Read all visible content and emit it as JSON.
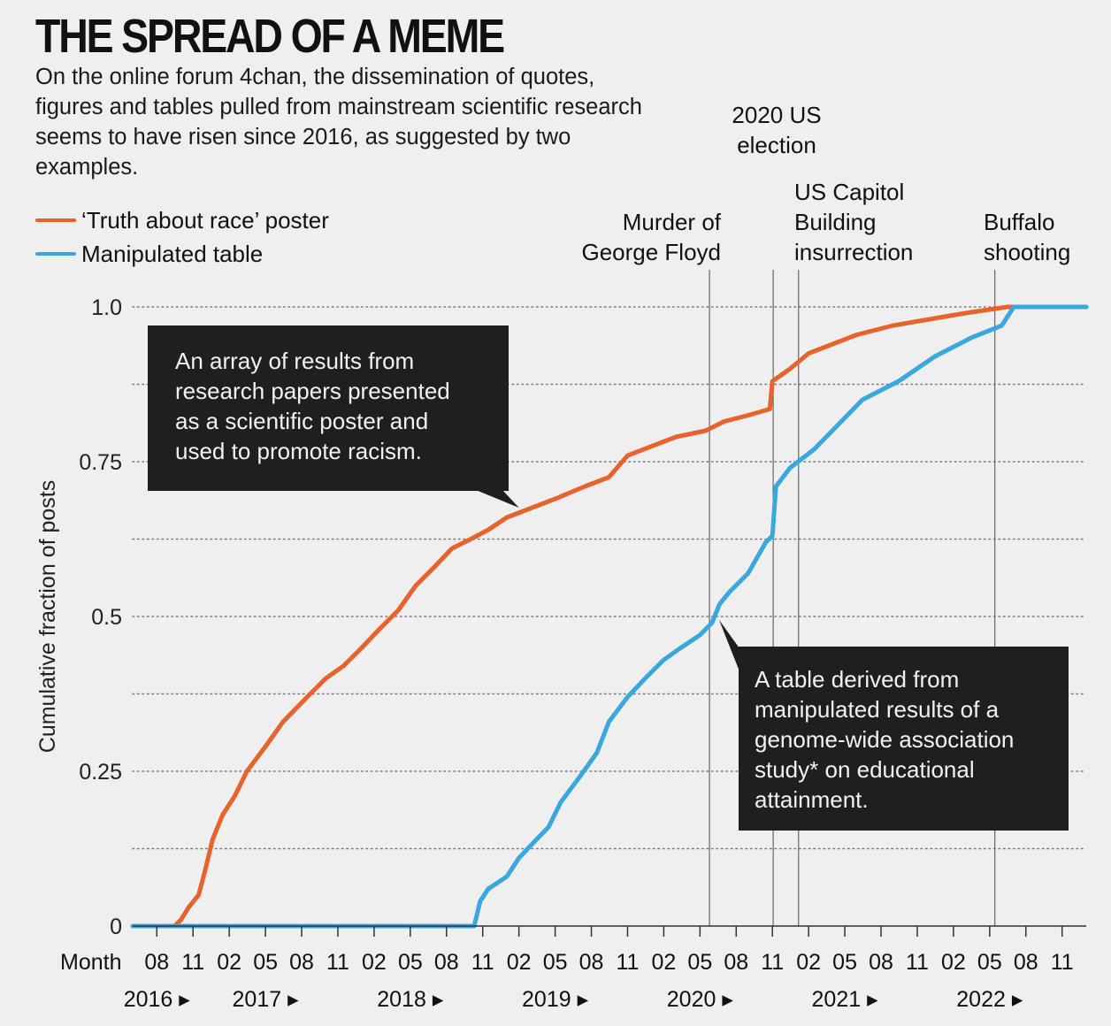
{
  "title": "THE SPREAD OF A MEME",
  "subtitle": "On the online forum 4chan, the dissemination of quotes, figures and tables pulled from mainstream scientific research seems to have risen since 2016, as suggested by two examples.",
  "colors": {
    "poster": "#e8622c",
    "table": "#3aa7dd",
    "background": "#efefef",
    "box": "#1f1f1f"
  },
  "chart_data": {
    "type": "line",
    "ylabel": "Cumulative fraction of posts",
    "xlabel": "Month",
    "ylim": [
      0,
      1
    ],
    "xlim": [
      "2016-06",
      "2023-01"
    ],
    "yticks": [
      {
        "value": 0,
        "label": "0"
      },
      {
        "value": 0.25,
        "label": "0.25"
      },
      {
        "value": 0.5,
        "label": "0.5"
      },
      {
        "value": 0.75,
        "label": "0.75"
      },
      {
        "value": 1.0,
        "label": "1.0"
      }
    ],
    "month_ticks": [
      {
        "date": "2016-08",
        "label": "08"
      },
      {
        "date": "2016-11",
        "label": "11"
      },
      {
        "date": "2017-02",
        "label": "02"
      },
      {
        "date": "2017-05",
        "label": "05"
      },
      {
        "date": "2017-08",
        "label": "08"
      },
      {
        "date": "2017-11",
        "label": "11"
      },
      {
        "date": "2018-02",
        "label": "02"
      },
      {
        "date": "2018-05",
        "label": "05"
      },
      {
        "date": "2018-08",
        "label": "08"
      },
      {
        "date": "2018-11",
        "label": "11"
      },
      {
        "date": "2019-02",
        "label": "02"
      },
      {
        "date": "2019-05",
        "label": "05"
      },
      {
        "date": "2019-08",
        "label": "08"
      },
      {
        "date": "2019-11",
        "label": "11"
      },
      {
        "date": "2020-02",
        "label": "02"
      },
      {
        "date": "2020-05",
        "label": "05"
      },
      {
        "date": "2020-08",
        "label": "08"
      },
      {
        "date": "2020-11",
        "label": "11"
      },
      {
        "date": "2021-02",
        "label": "02"
      },
      {
        "date": "2021-05",
        "label": "05"
      },
      {
        "date": "2021-08",
        "label": "08"
      },
      {
        "date": "2021-11",
        "label": "11"
      },
      {
        "date": "2022-02",
        "label": "02"
      },
      {
        "date": "2022-05",
        "label": "05"
      },
      {
        "date": "2022-08",
        "label": "08"
      },
      {
        "date": "2022-11",
        "label": "11"
      }
    ],
    "year_labels": [
      {
        "date": "2016-08",
        "label": "2016 ▸"
      },
      {
        "date": "2017-05",
        "label": "2017 ▸"
      },
      {
        "date": "2018-05",
        "label": "2018 ▸"
      },
      {
        "date": "2019-05",
        "label": "2019 ▸"
      },
      {
        "date": "2020-05",
        "label": "2020 ▸"
      },
      {
        "date": "2021-05",
        "label": "2021 ▸"
      },
      {
        "date": "2022-05",
        "label": "2022 ▸"
      }
    ],
    "series": [
      {
        "name": "‘Truth about race’ poster",
        "color": "#e8622c",
        "points": [
          [
            "2016-06-01",
            0
          ],
          [
            "2016-09-15",
            0
          ],
          [
            "2016-10-01",
            0.01
          ],
          [
            "2016-10-20",
            0.03
          ],
          [
            "2016-11-15",
            0.05
          ],
          [
            "2016-12-01",
            0.09
          ],
          [
            "2016-12-20",
            0.14
          ],
          [
            "2017-01-15",
            0.18
          ],
          [
            "2017-02-15",
            0.21
          ],
          [
            "2017-03-15",
            0.25
          ],
          [
            "2017-05-01",
            0.29
          ],
          [
            "2017-06-15",
            0.33
          ],
          [
            "2017-08-15",
            0.37
          ],
          [
            "2017-10-01",
            0.4
          ],
          [
            "2017-11-15",
            0.42
          ],
          [
            "2018-01-01",
            0.45
          ],
          [
            "2018-02-15",
            0.48
          ],
          [
            "2018-04-01",
            0.51
          ],
          [
            "2018-05-15",
            0.55
          ],
          [
            "2018-07-01",
            0.58
          ],
          [
            "2018-08-15",
            0.61
          ],
          [
            "2018-10-01",
            0.625
          ],
          [
            "2018-11-15",
            0.64
          ],
          [
            "2019-01-01",
            0.66
          ],
          [
            "2019-03-01",
            0.675
          ],
          [
            "2019-05-01",
            0.69
          ],
          [
            "2019-07-15",
            0.71
          ],
          [
            "2019-09-15",
            0.725
          ],
          [
            "2019-11-01",
            0.76
          ],
          [
            "2020-01-01",
            0.775
          ],
          [
            "2020-03-01",
            0.79
          ],
          [
            "2020-05-15",
            0.8
          ],
          [
            "2020-07-01",
            0.815
          ],
          [
            "2020-09-01",
            0.825
          ],
          [
            "2020-10-25",
            0.835
          ],
          [
            "2020-11-01",
            0.88
          ],
          [
            "2020-12-15",
            0.9
          ],
          [
            "2021-02-01",
            0.925
          ],
          [
            "2021-04-01",
            0.94
          ],
          [
            "2021-06-01",
            0.955
          ],
          [
            "2021-09-01",
            0.97
          ],
          [
            "2021-12-01",
            0.98
          ],
          [
            "2022-03-01",
            0.99
          ],
          [
            "2022-06-15",
            1.0
          ],
          [
            "2023-01-01",
            1.0
          ]
        ]
      },
      {
        "name": "Manipulated table",
        "color": "#3aa7dd",
        "points": [
          [
            "2016-06-01",
            0
          ],
          [
            "2018-10-10",
            0
          ],
          [
            "2018-10-25",
            0.04
          ],
          [
            "2018-11-15",
            0.06
          ],
          [
            "2019-01-01",
            0.08
          ],
          [
            "2019-02-01",
            0.11
          ],
          [
            "2019-03-15",
            0.14
          ],
          [
            "2019-04-15",
            0.16
          ],
          [
            "2019-05-15",
            0.2
          ],
          [
            "2019-07-01",
            0.24
          ],
          [
            "2019-08-15",
            0.28
          ],
          [
            "2019-09-15",
            0.33
          ],
          [
            "2019-11-01",
            0.37
          ],
          [
            "2019-12-15",
            0.4
          ],
          [
            "2020-02-01",
            0.43
          ],
          [
            "2020-03-15",
            0.45
          ],
          [
            "2020-05-01",
            0.47
          ],
          [
            "2020-06-01",
            0.49
          ],
          [
            "2020-06-20",
            0.52
          ],
          [
            "2020-07-15",
            0.54
          ],
          [
            "2020-09-01",
            0.57
          ],
          [
            "2020-10-15",
            0.62
          ],
          [
            "2020-11-01",
            0.63
          ],
          [
            "2020-11-10",
            0.71
          ],
          [
            "2020-12-15",
            0.74
          ],
          [
            "2021-02-15",
            0.77
          ],
          [
            "2021-04-15",
            0.81
          ],
          [
            "2021-06-15",
            0.85
          ],
          [
            "2021-09-15",
            0.88
          ],
          [
            "2021-12-15",
            0.92
          ],
          [
            "2022-03-15",
            0.95
          ],
          [
            "2022-06-01",
            0.97
          ],
          [
            "2022-07-01",
            1.0
          ],
          [
            "2023-01-01",
            1.0
          ]
        ]
      }
    ],
    "events": [
      {
        "date": "2020-05-25",
        "label": [
          "Murder of",
          "George Floyd"
        ]
      },
      {
        "date": "2020-11-03",
        "label": [
          "2020 US",
          "election"
        ]
      },
      {
        "date": "2021-01-06",
        "label": [
          "US Capitol",
          "Building",
          "insurrection"
        ]
      },
      {
        "date": "2022-05-14",
        "label": [
          "Buffalo",
          "shooting"
        ]
      }
    ],
    "annotations": [
      {
        "target_series": 0,
        "target_date": "2019-02-01",
        "target_value": 0.67,
        "lines": [
          "An array of results from",
          "research papers presented",
          "as a scientific poster and",
          "used to promote racism."
        ]
      },
      {
        "target_series": 1,
        "target_date": "2020-06-10",
        "target_value": 0.5,
        "lines": [
          "A table derived from",
          "manipulated results of a",
          "genome-wide association",
          "study* on educational",
          "attainment."
        ]
      }
    ]
  }
}
